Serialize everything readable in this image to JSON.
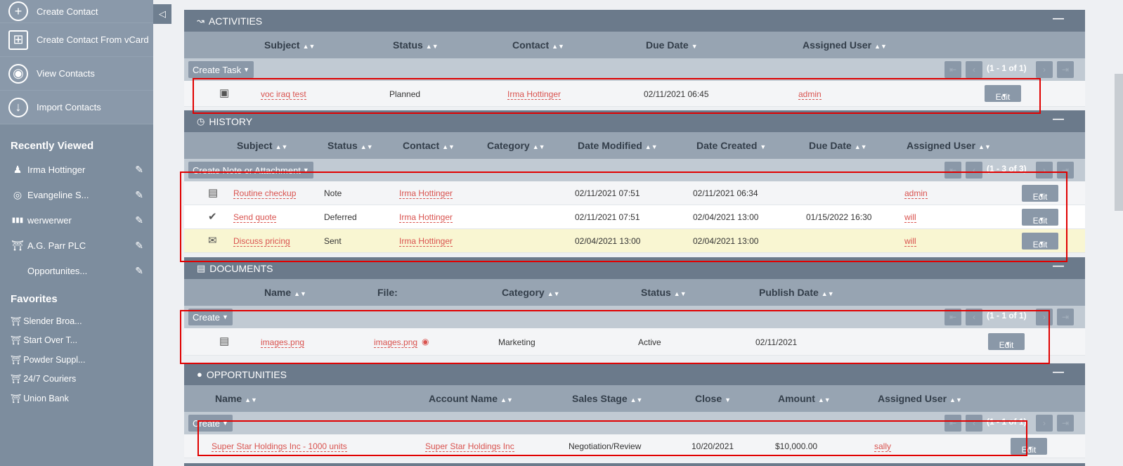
{
  "sidebar": {
    "actions": [
      {
        "label": "Create Contact",
        "icon": "plus-circle-icon",
        "glyph": "+"
      },
      {
        "label": "Create Contact From vCard",
        "icon": "vcard-icon",
        "glyph": "⊞"
      },
      {
        "label": "View Contacts",
        "icon": "eye-icon",
        "glyph": "◉"
      },
      {
        "label": "Import Contacts",
        "icon": "import-icon",
        "glyph": "↓"
      }
    ],
    "recently_viewed_title": "Recently Viewed",
    "recently_viewed": [
      {
        "label": "Irma Hottinger",
        "icon": "contact-icon",
        "glyph": "👤"
      },
      {
        "label": "Evangeline S...",
        "icon": "target-icon",
        "glyph": "◎"
      },
      {
        "label": "werwerwer",
        "icon": "bars-icon",
        "glyph": "▮▮▮"
      },
      {
        "label": "A.G. Parr PLC",
        "icon": "shield-icon",
        "glyph": "⛉"
      },
      {
        "label": "Opportunites...",
        "icon": "",
        "glyph": ""
      }
    ],
    "favorites_title": "Favorites",
    "favorites": [
      {
        "label": "Slender Broa..."
      },
      {
        "label": "Start Over T..."
      },
      {
        "label": "Powder Suppl..."
      },
      {
        "label": "24/7 Couriers"
      },
      {
        "label": "Union Bank"
      }
    ],
    "collapse_glyph": "◁"
  },
  "activities": {
    "title": "ACTIVITIES",
    "columns": [
      "Subject",
      "Status",
      "Contact",
      "Due Date",
      "Assigned User"
    ],
    "create_label": "Create Task",
    "pagination": "(1 - 1 of 1)",
    "rows": [
      {
        "subject": "voc iraq test",
        "status": "Planned",
        "contact": "Irma Hottinger",
        "due_date": "02/11/2021 06:45",
        "assigned": "admin",
        "edit": "Edit"
      }
    ]
  },
  "history": {
    "title": "HISTORY",
    "columns": [
      "Subject",
      "Status",
      "Contact",
      "Category",
      "Date Modified",
      "Date Created",
      "Due Date",
      "Assigned User"
    ],
    "create_label": "Create Note or Attachment",
    "pagination": "(1 - 3 of 3)",
    "rows": [
      {
        "subject": "Routine checkup",
        "status": "Note",
        "contact": "Irma Hottinger",
        "modified": "02/11/2021 07:51",
        "created": "02/11/2021 06:34",
        "due": "",
        "assigned": "admin",
        "edit": "Edit",
        "icon": "note-icon"
      },
      {
        "subject": "Send quote",
        "status": "Deferred",
        "contact": "Irma Hottinger",
        "modified": "02/11/2021 07:51",
        "created": "02/04/2021 13:00",
        "due": "01/15/2022 16:30",
        "assigned": "will",
        "edit": "Edit",
        "icon": "task-icon"
      },
      {
        "subject": "Discuss pricing",
        "status": "Sent",
        "contact": "Irma Hottinger",
        "modified": "02/04/2021 13:00",
        "created": "02/04/2021 13:00",
        "due": "",
        "assigned": "will",
        "edit": "Edit",
        "icon": "email-icon"
      }
    ]
  },
  "documents": {
    "title": "DOCUMENTS",
    "columns": [
      "Name",
      "File:",
      "Category",
      "Status",
      "Publish Date"
    ],
    "create_label": "Create",
    "pagination": "(1 - 1 of 1)",
    "rows": [
      {
        "name": "images.png",
        "file": "images.png",
        "category": "Marketing",
        "status": "Active",
        "publish": "02/11/2021",
        "edit": "Edit"
      }
    ]
  },
  "opportunities": {
    "title": "OPPORTUNITIES",
    "columns": [
      "Name",
      "Account Name",
      "Sales Stage",
      "Close",
      "Amount",
      "Assigned User"
    ],
    "create_label": "Create",
    "pagination": "(1 - 1 of 1)",
    "rows": [
      {
        "name": "Super Star Holdings Inc - 1000 units",
        "account": "Super Star Holdings Inc",
        "stage": "Negotiation/Review",
        "close": "10/20/2021",
        "amount": "$10,000.00",
        "assigned": "sally",
        "edit": "Edit"
      }
    ]
  },
  "colors": {
    "accent_link": "#d9534f",
    "highlight": "#e00000",
    "panel_header": "#6b7a8b"
  }
}
